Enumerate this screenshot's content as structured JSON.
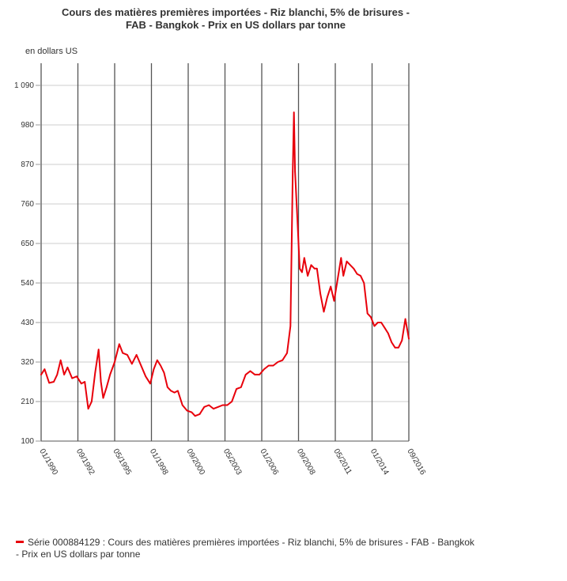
{
  "chart_data": {
    "type": "line",
    "title": "Cours des matières premières importées - Riz blanchi, 5% de brisures -",
    "subtitle": "FAB - Bangkok - Prix en US dollars par tonne",
    "ylabel": "en dollars US",
    "xlabel": "",
    "ylim": [
      100,
      1090
    ],
    "yticks": [
      "100",
      "210",
      "320",
      "430",
      "540",
      "650",
      "760",
      "870",
      "980",
      "1 090"
    ],
    "xticks": [
      "01/1990",
      "09/1992",
      "05/1995",
      "01/1998",
      "09/2000",
      "05/2003",
      "01/2006",
      "09/2008",
      "05/2011",
      "01/2014",
      "09/2016"
    ],
    "xrange": [
      "01/1990",
      "09/2016"
    ],
    "grid": "vertical lines at x ticks and horizontal lines at y ticks",
    "legend_position": "bottom-left",
    "series": [
      {
        "name": "Série 000884129 : Cours des matières premières importées - Riz blanchi, 5% de brisures - FAB - Bangkok - Prix en US dollars par tonne",
        "color": "#e8000b",
        "points": [
          [
            "1990-01",
            285
          ],
          [
            "1990-04",
            300
          ],
          [
            "1990-08",
            262
          ],
          [
            "1990-12",
            265
          ],
          [
            "1991-03",
            285
          ],
          [
            "1991-06",
            325
          ],
          [
            "1991-09",
            285
          ],
          [
            "1991-12",
            305
          ],
          [
            "1992-04",
            275
          ],
          [
            "1992-08",
            280
          ],
          [
            "1992-12",
            260
          ],
          [
            "1993-03",
            265
          ],
          [
            "1993-06",
            190
          ],
          [
            "1993-09",
            210
          ],
          [
            "1993-12",
            290
          ],
          [
            "1994-03",
            355
          ],
          [
            "1994-05",
            265
          ],
          [
            "1994-07",
            220
          ],
          [
            "1994-10",
            250
          ],
          [
            "1995-01",
            285
          ],
          [
            "1995-05",
            320
          ],
          [
            "1995-09",
            370
          ],
          [
            "1995-12",
            345
          ],
          [
            "1996-04",
            340
          ],
          [
            "1996-08",
            315
          ],
          [
            "1996-12",
            340
          ],
          [
            "1997-04",
            310
          ],
          [
            "1997-08",
            280
          ],
          [
            "1997-12",
            260
          ],
          [
            "1998-03",
            300
          ],
          [
            "1998-06",
            325
          ],
          [
            "1998-09",
            310
          ],
          [
            "1998-12",
            290
          ],
          [
            "1999-03",
            250
          ],
          [
            "1999-06",
            240
          ],
          [
            "1999-09",
            235
          ],
          [
            "1999-12",
            240
          ],
          [
            "2000-04",
            200
          ],
          [
            "2000-08",
            185
          ],
          [
            "2000-12",
            180
          ],
          [
            "2001-03",
            170
          ],
          [
            "2001-07",
            175
          ],
          [
            "2001-11",
            195
          ],
          [
            "2002-03",
            200
          ],
          [
            "2002-07",
            190
          ],
          [
            "2002-11",
            195
          ],
          [
            "2003-03",
            200
          ],
          [
            "2003-07",
            200
          ],
          [
            "2003-11",
            210
          ],
          [
            "2004-03",
            245
          ],
          [
            "2004-07",
            250
          ],
          [
            "2004-11",
            285
          ],
          [
            "2005-03",
            295
          ],
          [
            "2005-07",
            285
          ],
          [
            "2005-11",
            285
          ],
          [
            "2006-03",
            300
          ],
          [
            "2006-07",
            310
          ],
          [
            "2006-11",
            310
          ],
          [
            "2007-03",
            320
          ],
          [
            "2007-07",
            325
          ],
          [
            "2007-11",
            345
          ],
          [
            "2008-02",
            420
          ],
          [
            "2008-04",
            850
          ],
          [
            "2008-05",
            1015
          ],
          [
            "2008-06",
            850
          ],
          [
            "2008-08",
            720
          ],
          [
            "2008-10",
            580
          ],
          [
            "2008-12",
            570
          ],
          [
            "2009-02",
            610
          ],
          [
            "2009-05",
            560
          ],
          [
            "2009-08",
            590
          ],
          [
            "2009-11",
            580
          ],
          [
            "2010-01",
            580
          ],
          [
            "2010-04",
            510
          ],
          [
            "2010-07",
            460
          ],
          [
            "2010-10",
            500
          ],
          [
            "2011-01",
            530
          ],
          [
            "2011-04",
            490
          ],
          [
            "2011-08",
            570
          ],
          [
            "2011-10",
            610
          ],
          [
            "2011-12",
            560
          ],
          [
            "2012-03",
            600
          ],
          [
            "2012-06",
            590
          ],
          [
            "2012-09",
            580
          ],
          [
            "2012-12",
            565
          ],
          [
            "2013-03",
            560
          ],
          [
            "2013-06",
            540
          ],
          [
            "2013-09",
            455
          ],
          [
            "2013-12",
            445
          ],
          [
            "2014-03",
            420
          ],
          [
            "2014-06",
            430
          ],
          [
            "2014-09",
            430
          ],
          [
            "2014-12",
            415
          ],
          [
            "2015-03",
            400
          ],
          [
            "2015-06",
            375
          ],
          [
            "2015-09",
            360
          ],
          [
            "2015-12",
            360
          ],
          [
            "2016-03",
            380
          ],
          [
            "2016-06",
            440
          ],
          [
            "2016-09",
            385
          ]
        ]
      }
    ]
  },
  "legend": {
    "label": "Série 000884129 : Cours des matières premières importées - Riz blanchi, 5% de brisures - FAB - Bangkok - Prix en US dollars par tonne"
  }
}
